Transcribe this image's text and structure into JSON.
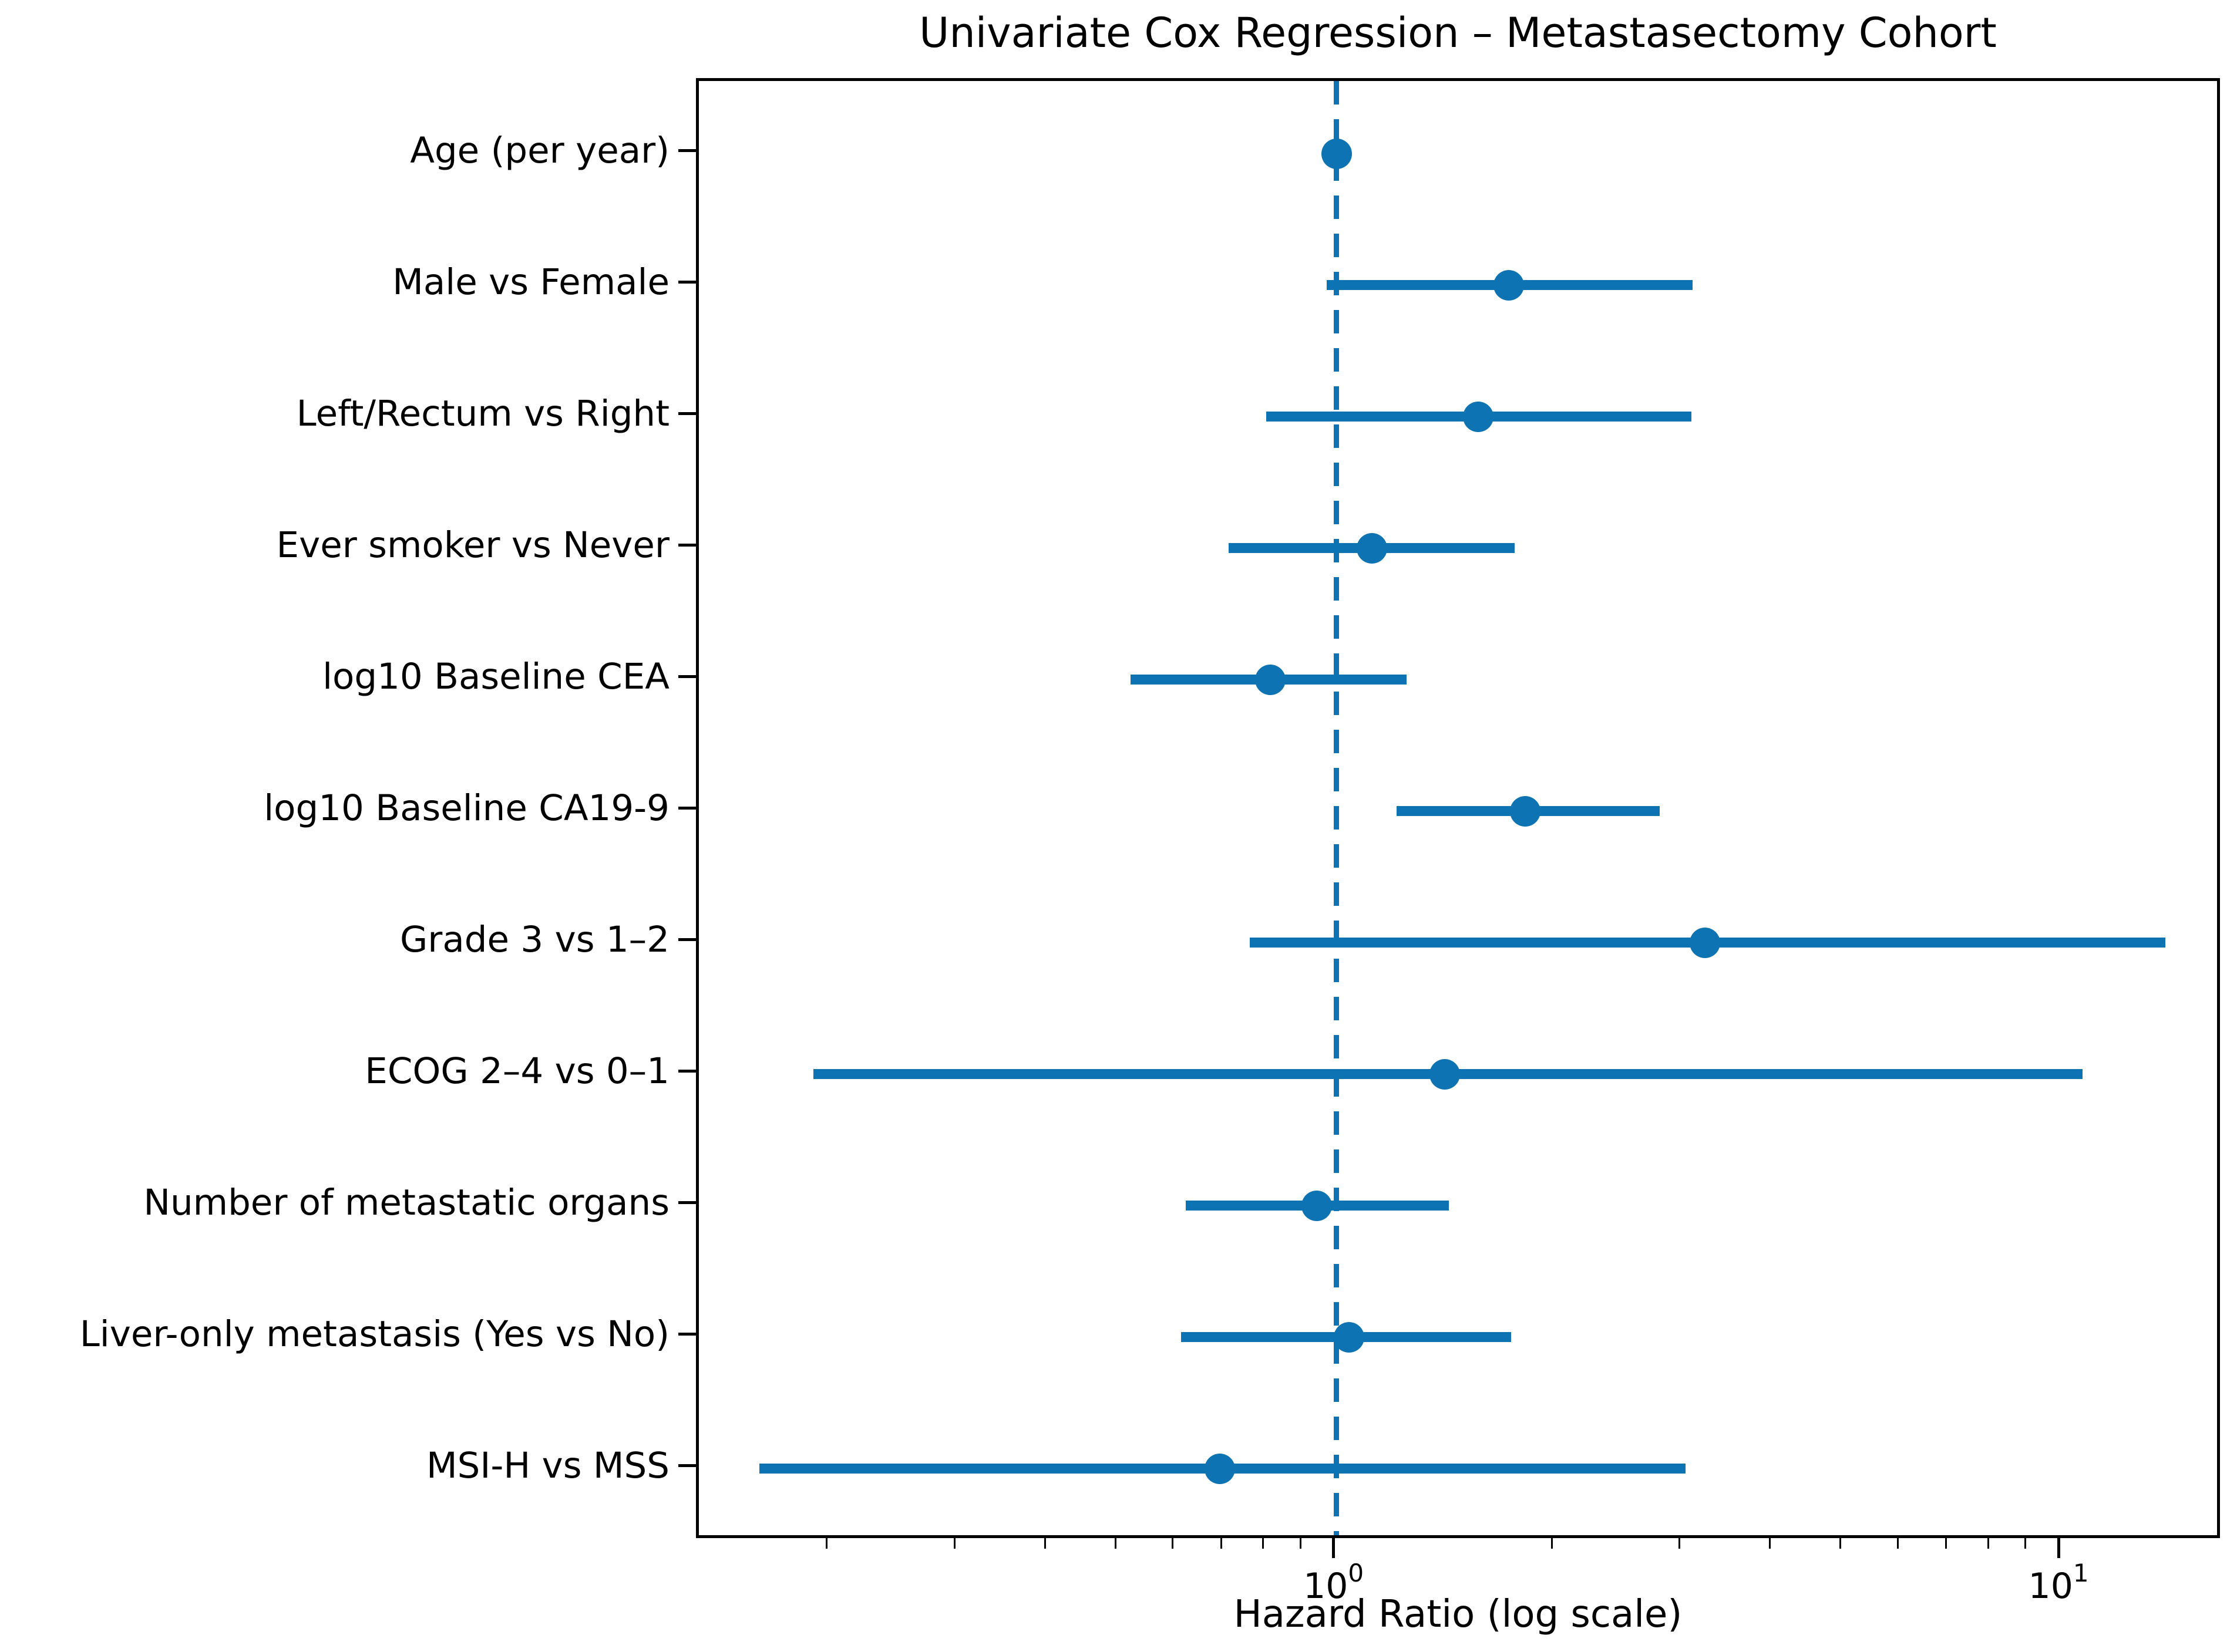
{
  "figure": {
    "title": "Univariate Cox Regression – Metastasectomy Cohort",
    "xlabel": "Hazard Ratio (log scale)"
  },
  "chart_data": {
    "type": "scatter",
    "subtype": "forest-plot",
    "title": "Univariate Cox Regression – Metastasectomy Cohort",
    "xlabel": "Hazard Ratio (log scale)",
    "ylabel": "",
    "x_scale": "log",
    "xlim": [
      0.132,
      16.7
    ],
    "reference_line_x": 1.0,
    "reference_line_style": "dashed",
    "grid": false,
    "legend": false,
    "x_major_ticks": [
      {
        "value": 1,
        "base": "10",
        "exponent": "0"
      },
      {
        "value": 10,
        "base": "10",
        "exponent": "1"
      }
    ],
    "x_minor_ticks": [
      0.2,
      0.3,
      0.4,
      0.5,
      0.6,
      0.7,
      0.8,
      0.9,
      2,
      3,
      4,
      5,
      6,
      7,
      8,
      9
    ],
    "rows": [
      {
        "label": "Age (per year)",
        "hr": 1.0,
        "ci_low": 0.99,
        "ci_high": 1.02
      },
      {
        "label": "Male vs Female",
        "hr": 1.73,
        "ci_low": 0.97,
        "ci_high": 3.1
      },
      {
        "label": "Left/Rectum vs Right",
        "hr": 1.57,
        "ci_low": 0.8,
        "ci_high": 3.09
      },
      {
        "label": "Ever smoker vs Never",
        "hr": 1.12,
        "ci_low": 0.71,
        "ci_high": 1.76
      },
      {
        "label": "log10 Baseline CEA",
        "hr": 0.81,
        "ci_low": 0.52,
        "ci_high": 1.25
      },
      {
        "label": "log10 Baseline CA19-9",
        "hr": 1.82,
        "ci_low": 1.21,
        "ci_high": 2.79
      },
      {
        "label": "Grade 3 vs 1–2",
        "hr": 3.22,
        "ci_low": 0.76,
        "ci_high": 13.9
      },
      {
        "label": "ECOG 2–4 vs 0–1",
        "hr": 1.41,
        "ci_low": 0.19,
        "ci_high": 10.7
      },
      {
        "label": "Number of metastatic organs",
        "hr": 0.94,
        "ci_low": 0.62,
        "ci_high": 1.43
      },
      {
        "label": "Liver-only metastasis (Yes vs No)",
        "hr": 1.04,
        "ci_low": 0.61,
        "ci_high": 1.74
      },
      {
        "label": "MSI-H vs MSS",
        "hr": 0.69,
        "ci_low": 0.16,
        "ci_high": 3.03
      }
    ],
    "colors": {
      "series": "#0d73b3",
      "frame": "#000000",
      "text": "#000000",
      "background": "#ffffff"
    }
  }
}
